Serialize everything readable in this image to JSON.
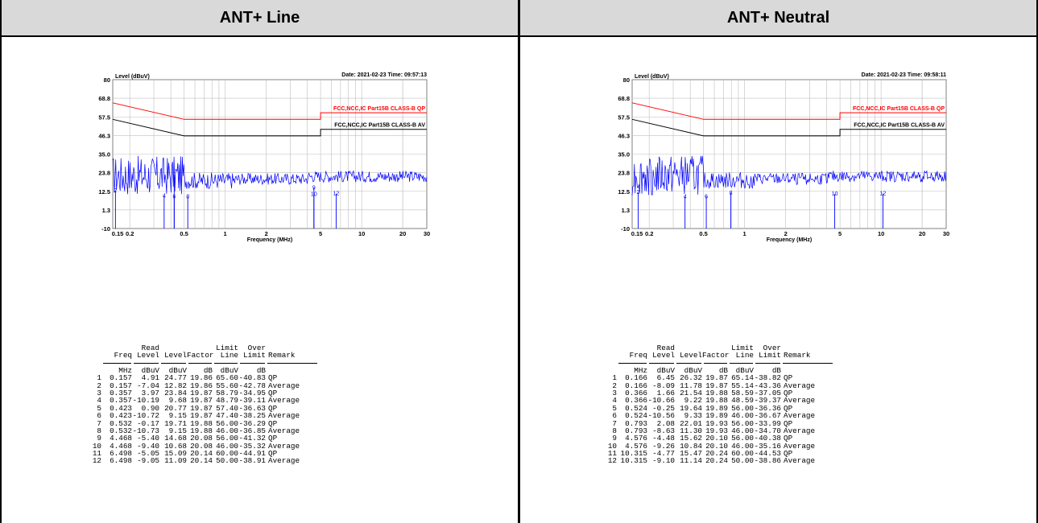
{
  "headers": {
    "left": "ANT+ Line",
    "right": "ANT+ Neutral"
  },
  "colors": {
    "qp_limit": "#ff0000",
    "av_limit": "#000000",
    "trace": "#0000ff",
    "grid": "#bfbfbf",
    "header_bg": "#d9d9d9"
  },
  "chart_data": [
    {
      "type": "line",
      "title_left": "Level (dBuV)",
      "title_right": "Date: 2021-02-23  Time: 09:57:13",
      "xlabel": "Frequency (MHz)",
      "x_scale": "log",
      "xlim": [
        0.15,
        30
      ],
      "ylim": [
        -10,
        80
      ],
      "y_ticks": [
        "80",
        "68.8",
        "57.5",
        "46.3",
        "35.0",
        "23.8",
        "12.5",
        "1.3",
        "-10"
      ],
      "y_tick_values": [
        80,
        68.8,
        57.5,
        46.3,
        35.0,
        23.8,
        12.5,
        1.3,
        -10
      ],
      "x_ticks": [
        "0.15",
        "0.2",
        "0.5",
        "1",
        "2",
        "5",
        "10",
        "20",
        "30"
      ],
      "x_tick_values": [
        0.15,
        0.2,
        0.5,
        1,
        2,
        5,
        10,
        20,
        30
      ],
      "series": [
        {
          "name": "FCC,NCC,IC Part15B CLASS-B QP",
          "color": "#ff0000",
          "x": [
            0.15,
            0.5,
            0.5,
            5,
            5,
            30
          ],
          "y": [
            66,
            56,
            56,
            56,
            60,
            60
          ]
        },
        {
          "name": "FCC,NCC,IC Part15B CLASS-B AV",
          "color": "#000000",
          "x": [
            0.15,
            0.5,
            0.5,
            5,
            5,
            30
          ],
          "y": [
            56,
            46,
            46,
            46,
            50,
            50
          ]
        }
      ],
      "markers": [
        {
          "label": "2",
          "freq": 0.157,
          "level": 12.82
        },
        {
          "label": "4",
          "freq": 0.357,
          "level": 9.68
        },
        {
          "label": "5",
          "freq": 0.423,
          "level": 20.77
        },
        {
          "label": "6",
          "freq": 0.423,
          "level": 9.15
        },
        {
          "label": "8",
          "freq": 0.532,
          "level": 9.15
        },
        {
          "label": "9",
          "freq": 4.468,
          "level": 14.68
        },
        {
          "label": "10",
          "freq": 4.468,
          "level": 10.68
        },
        {
          "label": "12",
          "freq": 6.498,
          "level": 11.09
        }
      ],
      "table": {
        "header1": [
          "",
          "",
          "Read",
          "",
          "",
          "Limit",
          "Over",
          ""
        ],
        "header2": [
          "",
          "Freq",
          "Level",
          "Level",
          "Factor",
          "Line",
          "Limit",
          "Remark"
        ],
        "units": [
          "",
          "MHz",
          "dBuV",
          "dBuV",
          "dB",
          "dBuV",
          "dB",
          ""
        ],
        "rows": [
          [
            "1",
            "0.157",
            "4.91",
            "24.77",
            "19.86",
            "65.60",
            "-40.83",
            "QP"
          ],
          [
            "2",
            "0.157",
            "-7.04",
            "12.82",
            "19.86",
            "55.60",
            "-42.78",
            "Average"
          ],
          [
            "3",
            "0.357",
            "3.97",
            "23.84",
            "19.87",
            "58.79",
            "-34.95",
            "QP"
          ],
          [
            "4",
            "0.357",
            "-10.19",
            "9.68",
            "19.87",
            "48.79",
            "-39.11",
            "Average"
          ],
          [
            "5",
            "0.423",
            "0.90",
            "20.77",
            "19.87",
            "57.40",
            "-36.63",
            "QP"
          ],
          [
            "6",
            "0.423",
            "-10.72",
            "9.15",
            "19.87",
            "47.40",
            "-38.25",
            "Average"
          ],
          [
            "7",
            "0.532",
            "-0.17",
            "19.71",
            "19.88",
            "56.00",
            "-36.29",
            "QP"
          ],
          [
            "8",
            "0.532",
            "-10.73",
            "9.15",
            "19.88",
            "46.00",
            "-36.85",
            "Average"
          ],
          [
            "9",
            "4.468",
            "-5.40",
            "14.68",
            "20.08",
            "56.00",
            "-41.32",
            "QP"
          ],
          [
            "10",
            "4.468",
            "-9.40",
            "10.68",
            "20.08",
            "46.00",
            "-35.32",
            "Average"
          ],
          [
            "11",
            "6.498",
            "-5.05",
            "15.09",
            "20.14",
            "60.00",
            "-44.91",
            "QP"
          ],
          [
            "12",
            "6.498",
            "-9.05",
            "11.09",
            "20.14",
            "50.00",
            "-38.91",
            "Average"
          ]
        ]
      }
    },
    {
      "type": "line",
      "title_left": "Level (dBuV)",
      "title_right": "Date: 2021-02-23  Time: 09:58:11",
      "xlabel": "Frequency (MHz)",
      "x_scale": "log",
      "xlim": [
        0.15,
        30
      ],
      "ylim": [
        -10,
        80
      ],
      "y_ticks": [
        "80",
        "68.8",
        "57.5",
        "46.3",
        "35.0",
        "23.8",
        "12.5",
        "1.3",
        "-10"
      ],
      "y_tick_values": [
        80,
        68.8,
        57.5,
        46.3,
        35.0,
        23.8,
        12.5,
        1.3,
        -10
      ],
      "x_ticks": [
        "0.15",
        "0.2",
        "0.5",
        "1",
        "2",
        "5",
        "10",
        "20",
        "30"
      ],
      "x_tick_values": [
        0.15,
        0.2,
        0.5,
        1,
        2,
        5,
        10,
        20,
        30
      ],
      "series": [
        {
          "name": "FCC,NCC,IC Part15B CLASS-B QP",
          "color": "#ff0000",
          "x": [
            0.15,
            0.5,
            0.5,
            5,
            5,
            30
          ],
          "y": [
            66,
            56,
            56,
            56,
            60,
            60
          ]
        },
        {
          "name": "FCC,NCC,IC Part15B CLASS-B AV",
          "color": "#000000",
          "x": [
            0.15,
            0.5,
            0.5,
            5,
            5,
            30
          ],
          "y": [
            56,
            46,
            46,
            46,
            50,
            50
          ]
        }
      ],
      "markers": [
        {
          "label": "2",
          "freq": 0.166,
          "level": 11.78
        },
        {
          "label": "4",
          "freq": 0.366,
          "level": 9.22
        },
        {
          "label": "6",
          "freq": 0.524,
          "level": 9.33
        },
        {
          "label": "8",
          "freq": 0.793,
          "level": 11.3
        },
        {
          "label": "10",
          "freq": 4.576,
          "level": 10.84
        },
        {
          "label": "12",
          "freq": 10.315,
          "level": 11.14
        }
      ],
      "table": {
        "header1": [
          "",
          "",
          "Read",
          "",
          "",
          "Limit",
          "Over",
          ""
        ],
        "header2": [
          "",
          "Freq",
          "Level",
          "Level",
          "Factor",
          "Line",
          "Limit",
          "Remark"
        ],
        "units": [
          "",
          "MHz",
          "dBuV",
          "dBuV",
          "dB",
          "dBuV",
          "dB",
          ""
        ],
        "rows": [
          [
            "1",
            "0.166",
            "6.45",
            "26.32",
            "19.87",
            "65.14",
            "-38.82",
            "QP"
          ],
          [
            "2",
            "0.166",
            "-8.09",
            "11.78",
            "19.87",
            "55.14",
            "-43.36",
            "Average"
          ],
          [
            "3",
            "0.366",
            "1.66",
            "21.54",
            "19.88",
            "58.59",
            "-37.05",
            "QP"
          ],
          [
            "4",
            "0.366",
            "-10.66",
            "9.22",
            "19.88",
            "48.59",
            "-39.37",
            "Average"
          ],
          [
            "5",
            "0.524",
            "-0.25",
            "19.64",
            "19.89",
            "56.00",
            "-36.36",
            "QP"
          ],
          [
            "6",
            "0.524",
            "-10.56",
            "9.33",
            "19.89",
            "46.00",
            "-36.67",
            "Average"
          ],
          [
            "7",
            "0.793",
            "2.08",
            "22.01",
            "19.93",
            "56.00",
            "-33.99",
            "QP"
          ],
          [
            "8",
            "0.793",
            "-8.63",
            "11.30",
            "19.93",
            "46.00",
            "-34.70",
            "Average"
          ],
          [
            "9",
            "4.576",
            "-4.48",
            "15.62",
            "20.10",
            "56.00",
            "-40.38",
            "QP"
          ],
          [
            "10",
            "4.576",
            "-9.26",
            "10.84",
            "20.10",
            "46.00",
            "-35.16",
            "Average"
          ],
          [
            "11",
            "10.315",
            "-4.77",
            "15.47",
            "20.24",
            "60.00",
            "-44.53",
            "QP"
          ],
          [
            "12",
            "10.315",
            "-9.10",
            "11.14",
            "20.24",
            "50.00",
            "-38.86",
            "Average"
          ]
        ]
      }
    }
  ]
}
